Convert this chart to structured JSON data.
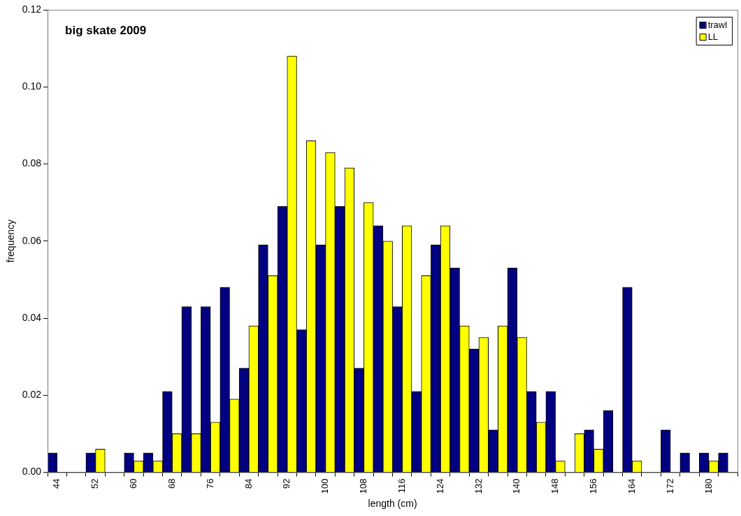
{
  "chart_data": {
    "type": "bar",
    "title": "big skate 2009",
    "xlabel": "length (cm)",
    "ylabel": "frequency",
    "categories": [
      "44",
      null,
      "52",
      null,
      "60",
      null,
      "68",
      null,
      "76",
      null,
      "84",
      null,
      "92",
      null,
      "100",
      null,
      "108",
      null,
      "116",
      null,
      "124",
      null,
      "132",
      null,
      "140",
      null,
      "148",
      null,
      "156",
      null,
      "164",
      null,
      "172",
      null,
      "180",
      null
    ],
    "series": [
      {
        "name": "trawl",
        "color": "#000080",
        "values": [
          0.005,
          0,
          0.005,
          0,
          0.005,
          0.005,
          0.021,
          0.043,
          0.043,
          0.048,
          0.027,
          0.059,
          0.069,
          0.037,
          0.059,
          0.069,
          0.027,
          0.064,
          0.043,
          0.021,
          0.059,
          0.053,
          0.032,
          0.011,
          0.053,
          0.021,
          0.021,
          0,
          0.011,
          0.016,
          0.048,
          0,
          0.011,
          0.005,
          0.005,
          0.005
        ]
      },
      {
        "name": "LL",
        "color": "#ffff00",
        "values": [
          0,
          0,
          0.006,
          0,
          0.003,
          0.003,
          0.01,
          0.01,
          0.013,
          0.019,
          0.038,
          0.051,
          0.108,
          0.086,
          0.083,
          0.079,
          0.07,
          0.06,
          0.064,
          0.051,
          0.064,
          0.038,
          0.035,
          0.038,
          0.035,
          0.013,
          0.003,
          0.01,
          0.006,
          0,
          0.003,
          0,
          0,
          0,
          0.003,
          0
        ]
      }
    ],
    "ylim": [
      0,
      0.12
    ],
    "yticks": [
      {
        "value": 0,
        "label": "0.00"
      },
      {
        "value": 0.02,
        "label": "0.02"
      },
      {
        "value": 0.04,
        "label": "0.04"
      },
      {
        "value": 0.06,
        "label": "0.06"
      },
      {
        "value": 0.08,
        "label": "0.08"
      },
      {
        "value": 0.1,
        "label": "0.10"
      },
      {
        "value": 0.12,
        "label": "0.12"
      }
    ],
    "legend": "top right"
  }
}
